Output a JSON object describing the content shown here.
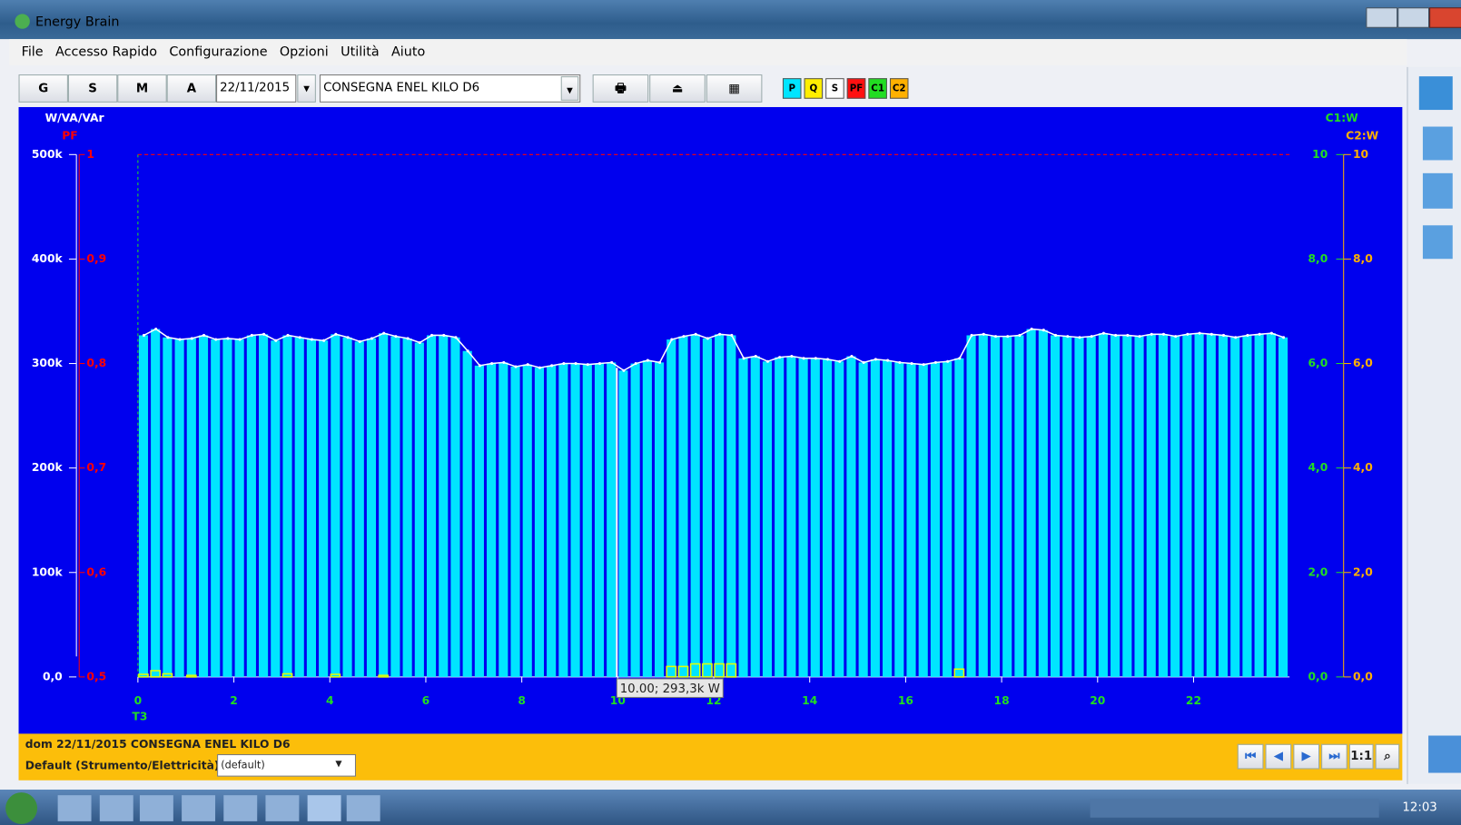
{
  "window": {
    "title": "Energy Brain"
  },
  "menu": [
    "File",
    "Accesso Rapido",
    "Configurazione",
    "Opzioni",
    "Utilità",
    "Aiuto"
  ],
  "toolbar": {
    "period_buttons": [
      "G",
      "S",
      "M",
      "A"
    ],
    "date": "22/11/2015",
    "meter": "CONSEGNA ENEL KILO D6",
    "series_toggles": [
      "P",
      "Q",
      "S",
      "PF",
      "C1",
      "C2"
    ]
  },
  "chart_data": {
    "type": "bar",
    "y_label": "W/VA/VAr",
    "pf_label": "PF",
    "y2_label": "C1:W",
    "y3_label": "C2:W",
    "x_annotation": "T3",
    "x": [
      0,
      0.25,
      0.5,
      0.75,
      1,
      1.25,
      1.5,
      1.75,
      2,
      2.25,
      2.5,
      2.75,
      3,
      3.25,
      3.5,
      3.75,
      4,
      4.25,
      4.5,
      4.75,
      5,
      5.25,
      5.5,
      5.75,
      6,
      6.25,
      6.5,
      6.75,
      7,
      7.25,
      7.5,
      7.75,
      8,
      8.25,
      8.5,
      8.75,
      9,
      9.25,
      9.5,
      9.75,
      10,
      10.25,
      10.5,
      10.75,
      11,
      11.25,
      11.5,
      11.75,
      12,
      12.25,
      12.5,
      12.75,
      13,
      13.25,
      13.5,
      13.75,
      14,
      14.25,
      14.5,
      14.75,
      15,
      15.25,
      15.5,
      15.75,
      16,
      16.25,
      16.5,
      16.75,
      17,
      17.25,
      17.5,
      17.75,
      18,
      18.25,
      18.5,
      18.75,
      19,
      19.25,
      19.5,
      19.75,
      20,
      20.25,
      20.5,
      20.75,
      21,
      21.25,
      21.5,
      21.75,
      22,
      22.25,
      22.5,
      22.75,
      23,
      23.25,
      23.5,
      23.75
    ],
    "series": [
      {
        "color": "#00e5ff",
        "line_color": "#ffffff",
        "values": [
          327000,
          333000,
          325000,
          323000,
          324000,
          327000,
          323000,
          324000,
          323000,
          327000,
          328000,
          322000,
          327000,
          325000,
          323000,
          322000,
          328000,
          325000,
          321000,
          324000,
          329000,
          326000,
          324000,
          320000,
          327000,
          327000,
          325000,
          312000,
          298000,
          300000,
          301000,
          297000,
          299000,
          296000,
          298000,
          300000,
          300000,
          299000,
          300000,
          301000,
          293300,
          300000,
          303000,
          301000,
          323000,
          326000,
          328000,
          324000,
          328000,
          327000,
          305000,
          307000,
          302000,
          306000,
          307000,
          305000,
          305000,
          304000,
          302000,
          307000,
          301000,
          304000,
          303000,
          301000,
          300000,
          299000,
          301000,
          302000,
          305000,
          327000,
          328000,
          326000,
          326000,
          327000,
          333000,
          332000,
          327000,
          326000,
          325000,
          326000,
          329000,
          327000,
          327000,
          326000,
          328000,
          328000,
          326000,
          328000,
          329000,
          328000,
          327000,
          325000,
          327000,
          328000,
          329000,
          325000
        ]
      },
      {
        "axis": "pf",
        "color": "#ff0000",
        "x": [
          0,
          24
        ],
        "values": [
          1,
          1
        ]
      },
      {
        "axis": "y3",
        "color": "#e6ff00",
        "x": [
          0,
          0.25,
          0.5,
          1,
          3,
          4,
          5,
          11,
          11.25,
          11.5,
          11.75,
          12,
          12.25,
          17
        ],
        "values": [
          0.05,
          0.12,
          0.06,
          0.03,
          0.06,
          0.05,
          0.03,
          0.2,
          0.2,
          0.25,
          0.25,
          0.25,
          0.25,
          0.15
        ]
      }
    ],
    "xlim": [
      0,
      24
    ],
    "xticks": [
      0,
      2,
      4,
      6,
      8,
      10,
      12,
      14,
      16,
      18,
      20,
      22
    ],
    "ylim": [
      0,
      500000
    ],
    "yticks": [
      {
        "value": 0,
        "label": "0,0"
      },
      {
        "value": 100000,
        "label": "100k"
      },
      {
        "value": 200000,
        "label": "200k"
      },
      {
        "value": 300000,
        "label": "300k"
      },
      {
        "value": 400000,
        "label": "400k"
      },
      {
        "value": 500000,
        "label": "500k"
      }
    ],
    "pflim": [
      0.5,
      1
    ],
    "pfticks": [
      {
        "value": 0.5,
        "label": "0,5"
      },
      {
        "value": 0.6,
        "label": "0,6"
      },
      {
        "value": 0.7,
        "label": "0,7"
      },
      {
        "value": 0.8,
        "label": "0,8"
      },
      {
        "value": 0.9,
        "label": "0,9"
      },
      1
    ],
    "y2lim": [
      0,
      10
    ],
    "y2ticks": [
      {
        "value": 0,
        "label": "0,0"
      },
      {
        "value": 2,
        "label": "2,0"
      },
      {
        "value": 4,
        "label": "4,0"
      },
      {
        "value": 6,
        "label": "6,0"
      },
      {
        "value": 8,
        "label": "8,0"
      },
      10
    ],
    "y3ticks": [
      {
        "value": 0,
        "label": "0,0"
      },
      {
        "value": 2,
        "label": "2,0"
      },
      {
        "value": 4,
        "label": "4,0"
      },
      {
        "value": 6,
        "label": "6,0"
      },
      {
        "value": 8,
        "label": "8,0"
      },
      10
    ],
    "tooltip": {
      "label": "10.00; 293,3k W"
    }
  },
  "status": {
    "description": "dom 22/11/2015  CONSEGNA ENEL KILO D6",
    "profile_label": "Default (Strumento/Elettricità)",
    "profile_value": "(default)",
    "zoom": "1:1"
  },
  "taskbar": {
    "clock": "12:03"
  }
}
